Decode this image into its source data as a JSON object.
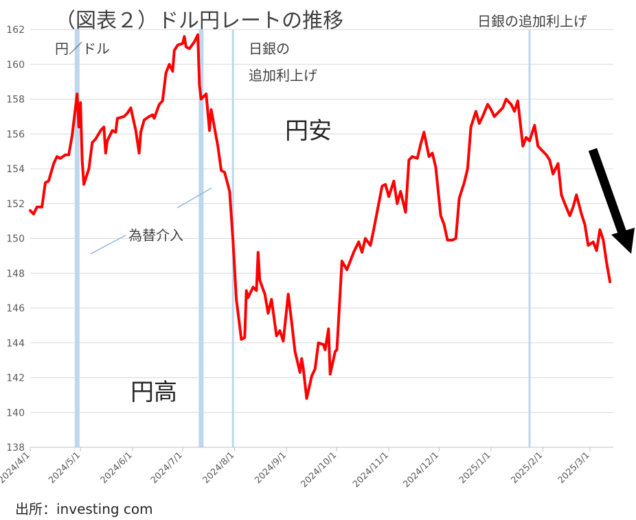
{
  "title": "（図表２）ドル円レートの推移",
  "unit_label": "円／ドル",
  "source": "出所：investing com",
  "chart_data": {
    "type": "line",
    "title": "（図表２）ドル円レートの推移",
    "ylabel": "円／ドル",
    "ylim": [
      138,
      162
    ],
    "yticks": [
      "138",
      "140",
      "142",
      "144",
      "146",
      "148",
      "150",
      "152",
      "154",
      "156",
      "158",
      "160",
      "162"
    ],
    "xticks": [
      "2024/4/1",
      "2024/5/1",
      "2024/6/1",
      "2024/7/1",
      "2024/8/1",
      "2024/9/1",
      "2024/10/1",
      "2024/11/1",
      "2024/12/1",
      "2025/1/1",
      "2025/2/1",
      "2025/3/1"
    ],
    "grid": true,
    "line_color": "#ff0000",
    "band_color": "#bdd7ee",
    "annotations": {
      "intervention": "為替介入",
      "boj_hike_1_line1": "日銀の",
      "boj_hike_1_line2": "追加利上げ",
      "boj_hike_2": "日銀の追加利上げ",
      "yen_weak": "円安",
      "yen_strong": "円高"
    },
    "event_dates": {
      "intervention_1": "2024/4/29",
      "intervention_2a": "2024/7/11",
      "intervention_2b": "2024/7/12",
      "boj_hike_1": "2024/7/31",
      "boj_hike_2": "2025/1/24"
    },
    "series": [
      {
        "values": [
          [
            "2024/4/1",
            151.6
          ],
          [
            "2024/4/3",
            151.4
          ],
          [
            "2024/4/5",
            151.8
          ],
          [
            "2024/4/8",
            151.8
          ],
          [
            "2024/4/10",
            153.2
          ],
          [
            "2024/4/12",
            153.3
          ],
          [
            "2024/4/15",
            154.3
          ],
          [
            "2024/4/17",
            154.7
          ],
          [
            "2024/4/19",
            154.6
          ],
          [
            "2024/4/22",
            154.8
          ],
          [
            "2024/4/24",
            154.8
          ],
          [
            "2024/4/26",
            155.9
          ],
          [
            "2024/4/29",
            158.3
          ],
          [
            "2024/4/30",
            156.4
          ],
          [
            "2024/5/1",
            157.8
          ],
          [
            "2024/5/2",
            154.5
          ],
          [
            "2024/5/3",
            153.1
          ],
          [
            "2024/5/6",
            154.0
          ],
          [
            "2024/5/8",
            155.5
          ],
          [
            "2024/5/10",
            155.7
          ],
          [
            "2024/5/13",
            156.2
          ],
          [
            "2024/5/15",
            156.4
          ],
          [
            "2024/5/16",
            154.9
          ],
          [
            "2024/5/17",
            155.6
          ],
          [
            "2024/5/20",
            156.2
          ],
          [
            "2024/5/22",
            156.1
          ],
          [
            "2024/5/23",
            156.9
          ],
          [
            "2024/5/27",
            157.0
          ],
          [
            "2024/5/29",
            157.2
          ],
          [
            "2024/5/31",
            157.5
          ],
          [
            "2024/6/3",
            156.2
          ],
          [
            "2024/6/5",
            154.9
          ],
          [
            "2024/6/6",
            156.1
          ],
          [
            "2024/6/8",
            156.8
          ],
          [
            "2024/6/11",
            157.0
          ],
          [
            "2024/6/13",
            157.1
          ],
          [
            "2024/6/14",
            156.9
          ],
          [
            "2024/6/17",
            157.7
          ],
          [
            "2024/6/19",
            157.9
          ],
          [
            "2024/6/21",
            159.5
          ],
          [
            "2024/6/23",
            160.0
          ],
          [
            "2024/6/25",
            159.6
          ],
          [
            "2024/6/26",
            160.8
          ],
          [
            "2024/6/28",
            161.1
          ],
          [
            "2024/7/1",
            161.2
          ],
          [
            "2024/7/2",
            161.6
          ],
          [
            "2024/7/3",
            161.0
          ],
          [
            "2024/7/5",
            160.9
          ],
          [
            "2024/7/8",
            161.3
          ],
          [
            "2024/7/10",
            161.7
          ],
          [
            "2024/7/11",
            158.8
          ],
          [
            "2024/7/12",
            158.0
          ],
          [
            "2024/7/15",
            158.3
          ],
          [
            "2024/7/17",
            156.2
          ],
          [
            "2024/7/18",
            157.4
          ],
          [
            "2024/7/22",
            155.3
          ],
          [
            "2024/7/24",
            153.9
          ],
          [
            "2024/7/26",
            153.8
          ],
          [
            "2024/7/29",
            152.7
          ],
          [
            "2024/7/31",
            149.9
          ],
          [
            "2024/8/2",
            146.5
          ],
          [
            "2024/8/5",
            144.2
          ],
          [
            "2024/8/7",
            144.3
          ],
          [
            "2024/8/8",
            147.0
          ],
          [
            "2024/8/9",
            146.6
          ],
          [
            "2024/8/12",
            147.2
          ],
          [
            "2024/8/14",
            147.0
          ],
          [
            "2024/8/15",
            149.2
          ],
          [
            "2024/8/16",
            147.6
          ],
          [
            "2024/8/19",
            146.8
          ],
          [
            "2024/8/21",
            145.7
          ],
          [
            "2024/8/23",
            146.5
          ],
          [
            "2024/8/26",
            144.4
          ],
          [
            "2024/8/28",
            144.7
          ],
          [
            "2024/8/30",
            144.1
          ],
          [
            "2024/9/2",
            146.8
          ],
          [
            "2024/9/4",
            145.2
          ],
          [
            "2024/9/6",
            143.5
          ],
          [
            "2024/9/9",
            142.3
          ],
          [
            "2024/9/10",
            143.1
          ],
          [
            "2024/9/11",
            142.5
          ],
          [
            "2024/9/13",
            140.8
          ],
          [
            "2024/9/16",
            142.1
          ],
          [
            "2024/9/18",
            142.5
          ],
          [
            "2024/9/20",
            144.0
          ],
          [
            "2024/9/23",
            143.9
          ],
          [
            "2024/9/24",
            143.6
          ],
          [
            "2024/9/26",
            144.8
          ],
          [
            "2024/9/27",
            142.2
          ],
          [
            "2024/9/30",
            143.5
          ],
          [
            "2024/10/1",
            143.6
          ],
          [
            "2024/10/3",
            146.9
          ],
          [
            "2024/10/4",
            148.7
          ],
          [
            "2024/10/7",
            148.2
          ],
          [
            "2024/10/9",
            148.7
          ],
          [
            "2024/10/11",
            149.2
          ],
          [
            "2024/10/14",
            149.8
          ],
          [
            "2024/10/16",
            149.2
          ],
          [
            "2024/10/18",
            150.0
          ],
          [
            "2024/10/21",
            149.6
          ],
          [
            "2024/10/23",
            150.5
          ],
          [
            "2024/10/25",
            151.5
          ],
          [
            "2024/10/28",
            153.0
          ],
          [
            "2024/10/30",
            153.1
          ],
          [
            "2024/11/1",
            152.4
          ],
          [
            "2024/11/4",
            153.3
          ],
          [
            "2024/11/6",
            152.0
          ],
          [
            "2024/11/8",
            152.7
          ],
          [
            "2024/11/11",
            151.5
          ],
          [
            "2024/11/13",
            154.5
          ],
          [
            "2024/11/15",
            154.7
          ],
          [
            "2024/11/18",
            154.6
          ],
          [
            "2024/11/20",
            155.4
          ],
          [
            "2024/11/22",
            156.1
          ],
          [
            "2024/11/25",
            154.7
          ],
          [
            "2024/11/27",
            154.9
          ],
          [
            "2024/11/29",
            154.1
          ],
          [
            "2024/12/2",
            151.3
          ],
          [
            "2024/12/4",
            150.8
          ],
          [
            "2024/12/6",
            149.9
          ],
          [
            "2024/12/9",
            149.9
          ],
          [
            "2024/12/11",
            150.0
          ],
          [
            "2024/12/13",
            152.3
          ],
          [
            "2024/12/16",
            153.2
          ],
          [
            "2024/12/18",
            154.0
          ],
          [
            "2024/12/20",
            156.4
          ],
          [
            "2024/12/23",
            157.3
          ],
          [
            "2024/12/25",
            156.6
          ],
          [
            "2024/12/27",
            157.0
          ],
          [
            "2024/12/30",
            157.7
          ],
          [
            "2025/1/1",
            157.4
          ],
          [
            "2025/1/3",
            157.0
          ],
          [
            "2025/1/6",
            157.3
          ],
          [
            "2025/1/8",
            157.5
          ],
          [
            "2025/1/10",
            158.0
          ],
          [
            "2025/1/13",
            157.7
          ],
          [
            "2025/1/15",
            157.3
          ],
          [
            "2025/1/17",
            157.9
          ],
          [
            "2025/1/20",
            155.3
          ],
          [
            "2025/1/22",
            155.8
          ],
          [
            "2025/1/24",
            155.6
          ],
          [
            "2025/1/27",
            156.5
          ],
          [
            "2025/1/29",
            155.3
          ],
          [
            "2025/1/31",
            155.1
          ],
          [
            "2025/2/3",
            154.8
          ],
          [
            "2025/2/5",
            154.5
          ],
          [
            "2025/2/7",
            153.7
          ],
          [
            "2025/2/10",
            154.3
          ],
          [
            "2025/2/12",
            152.5
          ],
          [
            "2025/2/14",
            152.0
          ],
          [
            "2025/2/17",
            151.3
          ],
          [
            "2025/2/19",
            151.8
          ],
          [
            "2025/2/21",
            152.5
          ],
          [
            "2025/2/24",
            151.4
          ],
          [
            "2025/2/26",
            150.8
          ],
          [
            "2025/2/28",
            149.6
          ],
          [
            "2025/3/3",
            149.8
          ],
          [
            "2025/3/5",
            149.3
          ],
          [
            "2025/3/7",
            150.5
          ],
          [
            "2025/3/9",
            149.9
          ],
          [
            "2025/3/11",
            148.6
          ],
          [
            "2025/3/13",
            147.5
          ]
        ]
      }
    ]
  }
}
